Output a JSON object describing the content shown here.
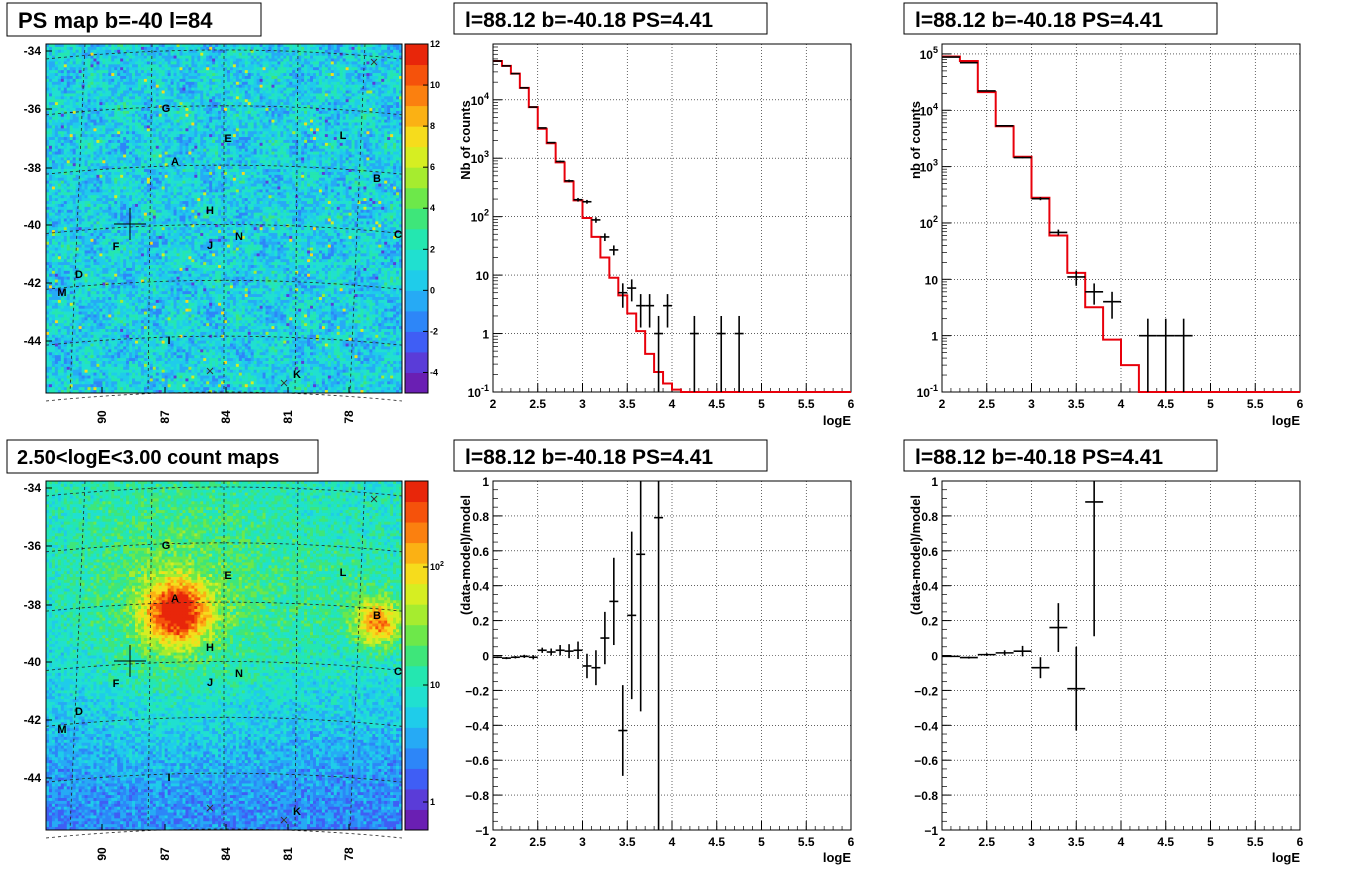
{
  "chart_data": [
    {
      "type": "heatmap",
      "title": "PS map b=-40 l=84",
      "x_ticks": [
        "90",
        "87",
        "84",
        "81",
        "78"
      ],
      "y_ticks": [
        "-34",
        "-36",
        "-38",
        "-40",
        "-42",
        "-44"
      ],
      "colorbar_ticks": [
        "12",
        "10",
        "8",
        "6",
        "4",
        "2",
        "0",
        "-2",
        "-4"
      ],
      "color_range": [
        -5,
        12
      ],
      "sources": [
        {
          "label": "G"
        },
        {
          "label": "E"
        },
        {
          "label": "L"
        },
        {
          "label": "A"
        },
        {
          "label": "B"
        },
        {
          "label": "H"
        },
        {
          "label": "N"
        },
        {
          "label": "C"
        },
        {
          "label": "F"
        },
        {
          "label": "J"
        },
        {
          "label": "D"
        },
        {
          "label": "M"
        },
        {
          "label": "I"
        },
        {
          "label": "K"
        }
      ]
    },
    {
      "type": "line",
      "title": "l=88.12 b=-40.18 PS=4.41",
      "xlabel": "logE",
      "ylabel": "Nb of counts",
      "yscale": "log",
      "xlim": [
        2,
        6
      ],
      "ylim": [
        0.1,
        90000
      ],
      "x_ticks": [
        "2",
        "2.5",
        "3",
        "3.5",
        "4",
        "4.5",
        "5",
        "5.5",
        "6"
      ],
      "y_ticks": [
        "10^-1",
        "1",
        "10",
        "10^2",
        "10^3",
        "10^4"
      ],
      "grid": true,
      "model": {
        "step": 0.1,
        "values": [
          46000,
          38000,
          28000,
          16000,
          7500,
          3200,
          1800,
          850,
          400,
          190,
          95,
          45,
          20,
          9,
          4.5,
          2.2,
          1.1,
          0.45,
          0.22,
          0.14,
          0.11,
          0.1,
          0.1,
          0.1,
          0.1,
          0.1,
          0.1,
          0.1,
          0.1,
          0.1,
          0.1,
          0.1,
          0.1,
          0.1,
          0.1,
          0.1,
          0.1,
          0.1,
          0.1,
          0.1
        ]
      },
      "data": [
        {
          "x": 2.05,
          "y": 46000
        },
        {
          "x": 2.15,
          "y": 38000
        },
        {
          "x": 2.25,
          "y": 28000
        },
        {
          "x": 2.35,
          "y": 16000
        },
        {
          "x": 2.45,
          "y": 7500
        },
        {
          "x": 2.55,
          "y": 3300
        },
        {
          "x": 2.65,
          "y": 1850
        },
        {
          "x": 2.75,
          "y": 880
        },
        {
          "x": 2.85,
          "y": 410
        },
        {
          "x": 2.95,
          "y": 195
        },
        {
          "x": 3.05,
          "y": 180
        },
        {
          "x": 3.15,
          "y": 88
        },
        {
          "x": 3.25,
          "y": 45
        },
        {
          "x": 3.35,
          "y": 27
        },
        {
          "x": 3.45,
          "y": 5
        },
        {
          "x": 3.55,
          "y": 6
        },
        {
          "x": 3.65,
          "y": 3
        },
        {
          "x": 3.75,
          "y": 3
        },
        {
          "x": 3.85,
          "y": 1
        },
        {
          "x": 3.95,
          "y": 3
        },
        {
          "x": 4.25,
          "y": 1
        },
        {
          "x": 4.55,
          "y": 1
        },
        {
          "x": 4.75,
          "y": 1
        }
      ]
    },
    {
      "type": "line",
      "title": "l=88.12 b=-40.18 PS=4.41",
      "xlabel": "logE",
      "ylabel": "nb of counts",
      "yscale": "log",
      "xlim": [
        2,
        6
      ],
      "ylim": [
        0.1,
        150000
      ],
      "x_ticks": [
        "2",
        "2.5",
        "3",
        "3.5",
        "4",
        "4.5",
        "5",
        "5.5",
        "6"
      ],
      "y_ticks": [
        "10^-1",
        "1",
        "10",
        "10^2",
        "10^3",
        "10^4",
        "10^5"
      ],
      "grid": true,
      "model": {
        "step": 0.2,
        "values": [
          90000,
          75000,
          21000,
          5200,
          1500,
          280,
          60,
          13,
          3.2,
          0.85,
          0.3,
          0.1,
          0.1,
          0.1,
          0.1,
          0.1,
          0.1,
          0.1,
          0.1,
          0.1
        ]
      },
      "data": [
        {
          "x": 2.1,
          "y": 88000
        },
        {
          "x": 2.3,
          "y": 70000
        },
        {
          "x": 2.5,
          "y": 22000
        },
        {
          "x": 2.7,
          "y": 5300
        },
        {
          "x": 2.9,
          "y": 1450
        },
        {
          "x": 3.1,
          "y": 270
        },
        {
          "x": 3.3,
          "y": 68
        },
        {
          "x": 3.5,
          "y": 11
        },
        {
          "x": 3.7,
          "y": 6
        },
        {
          "x": 3.9,
          "y": 4
        },
        {
          "x": 4.3,
          "y": 1
        },
        {
          "x": 4.5,
          "y": 1
        },
        {
          "x": 4.7,
          "y": 1
        }
      ]
    },
    {
      "type": "heatmap",
      "title": "2.50<logE<3.00 count maps",
      "x_ticks": [
        "90",
        "87",
        "84",
        "81",
        "78"
      ],
      "y_ticks": [
        "-34",
        "-36",
        "-38",
        "-40",
        "-42",
        "-44"
      ],
      "colorbar_ticks": [
        "10^2",
        "10",
        "1"
      ],
      "sources": [
        {
          "label": "G"
        },
        {
          "label": "E"
        },
        {
          "label": "L"
        },
        {
          "label": "A"
        },
        {
          "label": "B"
        },
        {
          "label": "H"
        },
        {
          "label": "N"
        },
        {
          "label": "C"
        },
        {
          "label": "F"
        },
        {
          "label": "J"
        },
        {
          "label": "D"
        },
        {
          "label": "M"
        },
        {
          "label": "I"
        },
        {
          "label": "K"
        }
      ]
    },
    {
      "type": "scatter",
      "title": "l=88.12 b=-40.18 PS=4.41",
      "xlabel": "logE",
      "ylabel": "(data-model)/model",
      "xlim": [
        2,
        6
      ],
      "ylim": [
        -1,
        1
      ],
      "x_ticks": [
        "2",
        "2.5",
        "3",
        "3.5",
        "4",
        "4.5",
        "5",
        "5.5",
        "6"
      ],
      "y_ticks": [
        "1",
        "0.8",
        "0.6",
        "0.4",
        "0.2",
        "0",
        "-0.2",
        "-0.4",
        "-0.6",
        "-0.8",
        "-1"
      ],
      "grid": true,
      "points": [
        {
          "x": 2.05,
          "y": -0.01,
          "err": 0.005
        },
        {
          "x": 2.15,
          "y": -0.015,
          "err": 0.006
        },
        {
          "x": 2.25,
          "y": -0.01,
          "err": 0.007
        },
        {
          "x": 2.35,
          "y": -0.005,
          "err": 0.009
        },
        {
          "x": 2.45,
          "y": -0.01,
          "err": 0.012
        },
        {
          "x": 2.55,
          "y": 0.03,
          "err": 0.015
        },
        {
          "x": 2.65,
          "y": 0.02,
          "err": 0.02
        },
        {
          "x": 2.75,
          "y": 0.03,
          "err": 0.03
        },
        {
          "x": 2.85,
          "y": 0.025,
          "err": 0.04
        },
        {
          "x": 2.95,
          "y": 0.03,
          "err": 0.05
        },
        {
          "x": 3.05,
          "y": -0.06,
          "err": 0.07
        },
        {
          "x": 3.15,
          "y": -0.07,
          "err": 0.1
        },
        {
          "x": 3.25,
          "y": 0.1,
          "err": 0.15
        },
        {
          "x": 3.35,
          "y": 0.31,
          "err": 0.25
        },
        {
          "x": 3.45,
          "y": -0.43,
          "err": 0.26
        },
        {
          "x": 3.55,
          "y": 0.23,
          "err": 0.48
        },
        {
          "x": 3.65,
          "y": 0.58,
          "err": 0.9
        },
        {
          "x": 3.85,
          "y": 0.79,
          "err": 1.8
        }
      ]
    },
    {
      "type": "scatter",
      "title": "l=88.12 b=-40.18 PS=4.41",
      "xlabel": "logE",
      "ylabel": "(data-model)/model",
      "xlim": [
        2,
        6
      ],
      "ylim": [
        -1,
        1
      ],
      "x_ticks": [
        "2",
        "2.5",
        "3",
        "3.5",
        "4",
        "4.5",
        "5",
        "5.5",
        "6"
      ],
      "y_ticks": [
        "1",
        "0.8",
        "0.6",
        "0.4",
        "0.2",
        "0",
        "-0.2",
        "-0.4",
        "-0.6",
        "-0.8",
        "-1"
      ],
      "grid": true,
      "points": [
        {
          "x": 2.1,
          "y": -0.005,
          "err": 0.004
        },
        {
          "x": 2.3,
          "y": -0.012,
          "err": 0.006
        },
        {
          "x": 2.5,
          "y": 0.005,
          "err": 0.008
        },
        {
          "x": 2.7,
          "y": 0.015,
          "err": 0.015
        },
        {
          "x": 2.9,
          "y": 0.025,
          "err": 0.03
        },
        {
          "x": 3.1,
          "y": -0.07,
          "err": 0.06
        },
        {
          "x": 3.3,
          "y": 0.16,
          "err": 0.14
        },
        {
          "x": 3.5,
          "y": -0.19,
          "err": 0.24
        },
        {
          "x": 3.7,
          "y": 0.88,
          "err": 0.77
        }
      ]
    }
  ]
}
